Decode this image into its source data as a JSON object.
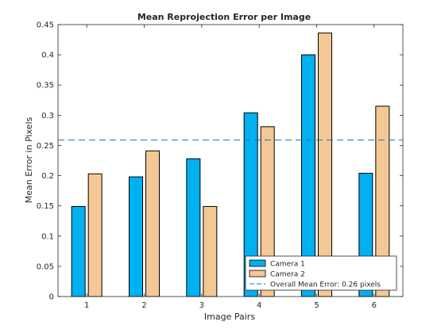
{
  "chart_data": {
    "type": "bar",
    "title": "Mean Reprojection Error per Image",
    "xlabel": "Image Pairs",
    "ylabel": "Mean Error in Pixels",
    "categories": [
      "1",
      "2",
      "3",
      "4",
      "5",
      "6"
    ],
    "ylim": [
      0,
      0.45
    ],
    "yticks": [
      0,
      0.05,
      0.1,
      0.15,
      0.2,
      0.25,
      0.3,
      0.35,
      0.4,
      0.45
    ],
    "ytick_labels": [
      "0",
      "0.05",
      "0.1",
      "0.15",
      "0.2",
      "0.25",
      "0.3",
      "0.35",
      "0.4",
      "0.45"
    ],
    "series": [
      {
        "name": "Camera 1",
        "color": "#00b0f0",
        "values": [
          0.149,
          0.198,
          0.228,
          0.304,
          0.4,
          0.204
        ]
      },
      {
        "name": "Camera 2",
        "color": "#f3c894",
        "values": [
          0.203,
          0.241,
          0.149,
          0.281,
          0.436,
          0.315
        ]
      }
    ],
    "reference_line": {
      "label": "Overall Mean Error: 0.26 pixels",
      "value": 0.259,
      "color": "#1f6fb0",
      "style": "dashed"
    },
    "grid": false,
    "legend_position": "bottom-right"
  }
}
